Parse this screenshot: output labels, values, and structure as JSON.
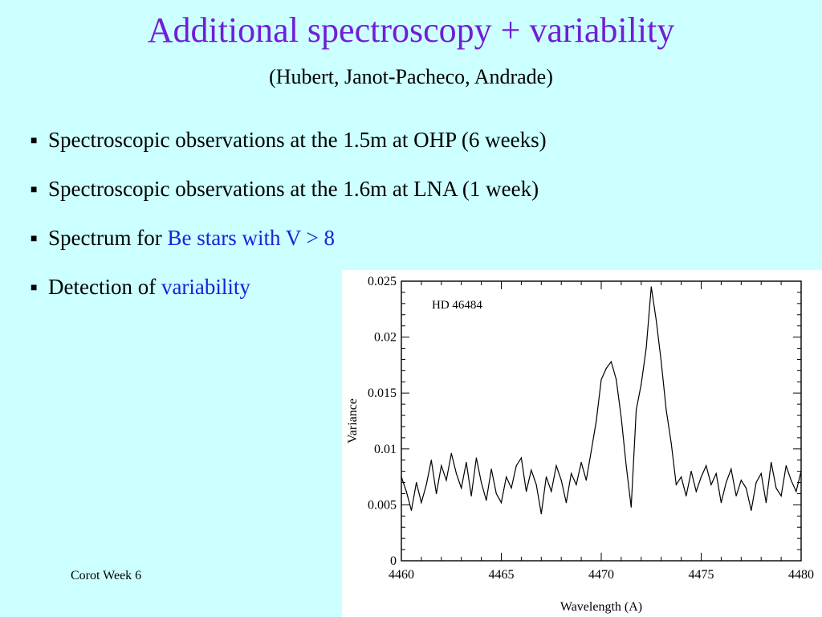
{
  "slide": {
    "title": "Additional spectroscopy + variability",
    "subtitle": "(Hubert, Janot-Pacheco, Andrade)",
    "footer": "Corot Week 6",
    "bullet_marker": "■",
    "bullets": [
      {
        "text": "Spectroscopic observations at the 1.5m at OHP (6 weeks)",
        "highlight": ""
      },
      {
        "text": "Spectroscopic observations at the 1.6m at LNA (1 week)",
        "highlight": ""
      },
      {
        "text": "Spectrum for ",
        "highlight": "Be stars with V > 8"
      },
      {
        "text": "Detection of ",
        "highlight": "variability"
      }
    ]
  },
  "colors": {
    "background": "#ccffff",
    "title": "#6f1fd6",
    "highlight": "#1a22d8"
  },
  "chart_data": {
    "type": "line",
    "annotation": "HD 46484",
    "xlabel": "Wavelength (A)",
    "ylabel": "Variance",
    "xlim": [
      4460,
      4480
    ],
    "ylim": [
      0,
      0.025
    ],
    "xticks": [
      4460,
      4465,
      4470,
      4475,
      4480
    ],
    "yticks": [
      0,
      0.005,
      0.01,
      0.015,
      0.02,
      0.025
    ],
    "ytick_labels": [
      "0",
      "0.005",
      "0.01",
      "0.015",
      "0.02",
      "0.025"
    ],
    "grid": false,
    "series": [
      {
        "x": [
          4460.0,
          4460.25,
          4460.5,
          4460.75,
          4461.0,
          4461.25,
          4461.5,
          4461.75,
          4462.0,
          4462.25,
          4462.5,
          4462.75,
          4463.0,
          4463.25,
          4463.5,
          4463.75,
          4464.0,
          4464.25,
          4464.5,
          4464.75,
          4465.0,
          4465.25,
          4465.5,
          4465.75,
          4466.0,
          4466.25,
          4466.5,
          4466.75,
          4467.0,
          4467.25,
          4467.5,
          4467.75,
          4468.0,
          4468.25,
          4468.5,
          4468.75,
          4469.0,
          4469.25,
          4469.5,
          4469.75,
          4470.0,
          4470.25,
          4470.5,
          4470.75,
          4471.0,
          4471.25,
          4471.5,
          4471.75,
          4472.0,
          4472.25,
          4472.5,
          4472.75,
          4473.0,
          4473.25,
          4473.5,
          4473.75,
          4474.0,
          4474.25,
          4474.5,
          4474.75,
          4475.0,
          4475.25,
          4475.5,
          4475.75,
          4476.0,
          4476.25,
          4476.5,
          4476.75,
          4477.0,
          4477.25,
          4477.5,
          4477.75,
          4478.0,
          4478.25,
          4478.5,
          4478.75,
          4479.0,
          4479.25,
          4479.5,
          4479.75,
          4480.0
        ],
        "values": [
          0.0075,
          0.0062,
          0.0045,
          0.007,
          0.0052,
          0.0068,
          0.009,
          0.006,
          0.0085,
          0.0072,
          0.0096,
          0.0078,
          0.0065,
          0.0088,
          0.0058,
          0.0092,
          0.007,
          0.0054,
          0.0082,
          0.006,
          0.0052,
          0.0075,
          0.0065,
          0.0085,
          0.0092,
          0.0062,
          0.0081,
          0.0068,
          0.0042,
          0.0075,
          0.0062,
          0.0085,
          0.0072,
          0.0052,
          0.0078,
          0.0068,
          0.0088,
          0.0072,
          0.0098,
          0.0125,
          0.0162,
          0.0172,
          0.0178,
          0.0162,
          0.0128,
          0.0085,
          0.0048,
          0.0135,
          0.0158,
          0.019,
          0.0245,
          0.0215,
          0.0178,
          0.0135,
          0.0105,
          0.0068,
          0.0075,
          0.0058,
          0.008,
          0.0062,
          0.0075,
          0.0085,
          0.0068,
          0.0078,
          0.0052,
          0.007,
          0.0082,
          0.0058,
          0.0072,
          0.0065,
          0.0045,
          0.007,
          0.0078,
          0.0052,
          0.0088,
          0.0065,
          0.0058,
          0.0085,
          0.0072,
          0.0062,
          0.008
        ]
      }
    ]
  }
}
